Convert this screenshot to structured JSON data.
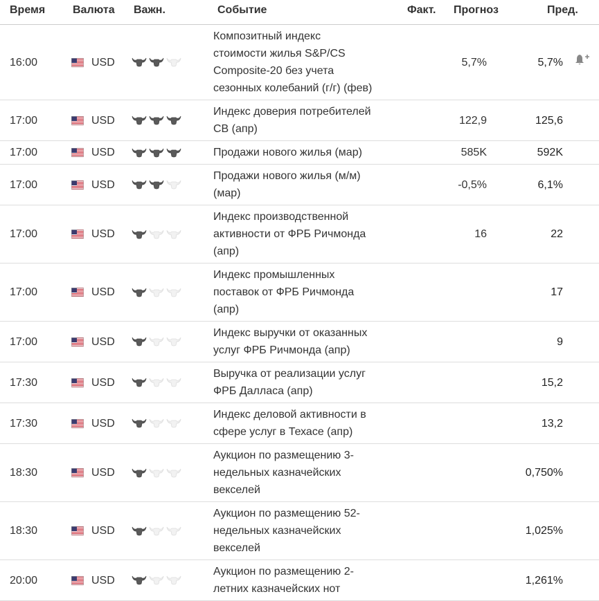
{
  "header": {
    "time": "Время",
    "currency": "Валюта",
    "importance": "Важн.",
    "event": "Событие",
    "actual": "Факт.",
    "forecast": "Прогноз",
    "previous": "Пред."
  },
  "rows": [
    {
      "time": "16:00",
      "currency": "USD",
      "importance": 2,
      "event": "Композитный индекс стоимости жилья S&P/CS Composite-20 без учета сезонных колебаний (г/г) (фев)",
      "forecast": "5,7%",
      "previous": "5,7%"
    },
    {
      "time": "17:00",
      "currency": "USD",
      "importance": 3,
      "event": "Индекс доверия потребителей CB (апр)",
      "forecast": "122,9",
      "previous": "125,6"
    },
    {
      "time": "17:00",
      "currency": "USD",
      "importance": 3,
      "event": "Продажи нового жилья (мар)",
      "forecast": "585K",
      "previous": "592K"
    },
    {
      "time": "17:00",
      "currency": "USD",
      "importance": 2,
      "event": "Продажи нового жилья (м/м) (мар)",
      "forecast": "-0,5%",
      "previous": "6,1%"
    },
    {
      "time": "17:00",
      "currency": "USD",
      "importance": 1,
      "event": "Индекс производственной активности от ФРБ Ричмонда (апр)",
      "forecast": "16",
      "previous": "22"
    },
    {
      "time": "17:00",
      "currency": "USD",
      "importance": 1,
      "event": "Индекс промышленных поставок от ФРБ Ричмонда (апр)",
      "forecast": null,
      "previous": "17"
    },
    {
      "time": "17:00",
      "currency": "USD",
      "importance": 1,
      "event": "Индекс выручки от оказанных услуг ФРБ Ричмонда (апр)",
      "forecast": null,
      "previous": "9"
    },
    {
      "time": "17:30",
      "currency": "USD",
      "importance": 1,
      "event": "Выручка от реализации услуг ФРБ Далласа (апр)",
      "forecast": null,
      "previous": "15,2"
    },
    {
      "time": "17:30",
      "currency": "USD",
      "importance": 1,
      "event": "Индекс деловой активности в сфере услуг в Техасе (апр)",
      "forecast": null,
      "previous": "13,2"
    },
    {
      "time": "18:30",
      "currency": "USD",
      "importance": 1,
      "event": "Аукцион по размещению 3-недельных казначейских векселей",
      "forecast": null,
      "previous": "0,750%"
    },
    {
      "time": "18:30",
      "currency": "USD",
      "importance": 1,
      "event": "Аукцион по размещению 52-недельных казначейских векселей",
      "forecast": null,
      "previous": "1,025%"
    },
    {
      "time": "20:00",
      "currency": "USD",
      "importance": 1,
      "event": "Аукцион по размещению 2-летних казначейских нот",
      "forecast": null,
      "previous": "1,261%"
    }
  ]
}
